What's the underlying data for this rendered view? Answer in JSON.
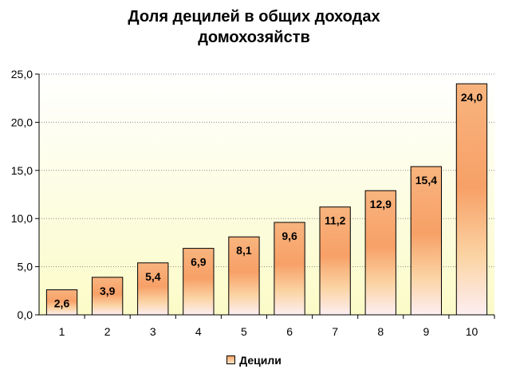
{
  "chart_data": {
    "type": "bar",
    "title_lines": [
      "Доля децилей в общих доходах",
      "домохозяйств"
    ],
    "categories": [
      "1",
      "2",
      "3",
      "4",
      "5",
      "6",
      "7",
      "8",
      "9",
      "10"
    ],
    "series": [
      {
        "name": "Децили",
        "values": [
          2.6,
          3.9,
          5.4,
          6.9,
          8.1,
          9.6,
          11.2,
          12.9,
          15.4,
          24.0
        ],
        "data_labels": [
          "2,6",
          "3,9",
          "5,4",
          "6,9",
          "8,1",
          "9,6",
          "11,2",
          "12,9",
          "15,4",
          "24,0"
        ]
      }
    ],
    "ylim": [
      0,
      25
    ],
    "yticks": [
      0,
      5,
      10,
      15,
      20,
      25
    ],
    "ytick_labels": [
      "0,0",
      "5,0",
      "10,0",
      "15,0",
      "20,0",
      "25,0"
    ],
    "grid": true,
    "legend_position": "bottom",
    "colors": {
      "bar_top": "#f6a56a",
      "bar_mid": "#fbcf9a",
      "bar_bottom": "#fff0f5",
      "plot_bg_top": "#ffffff",
      "plot_bg_bottom": "#fbfbc8",
      "grid": "#808080"
    }
  }
}
